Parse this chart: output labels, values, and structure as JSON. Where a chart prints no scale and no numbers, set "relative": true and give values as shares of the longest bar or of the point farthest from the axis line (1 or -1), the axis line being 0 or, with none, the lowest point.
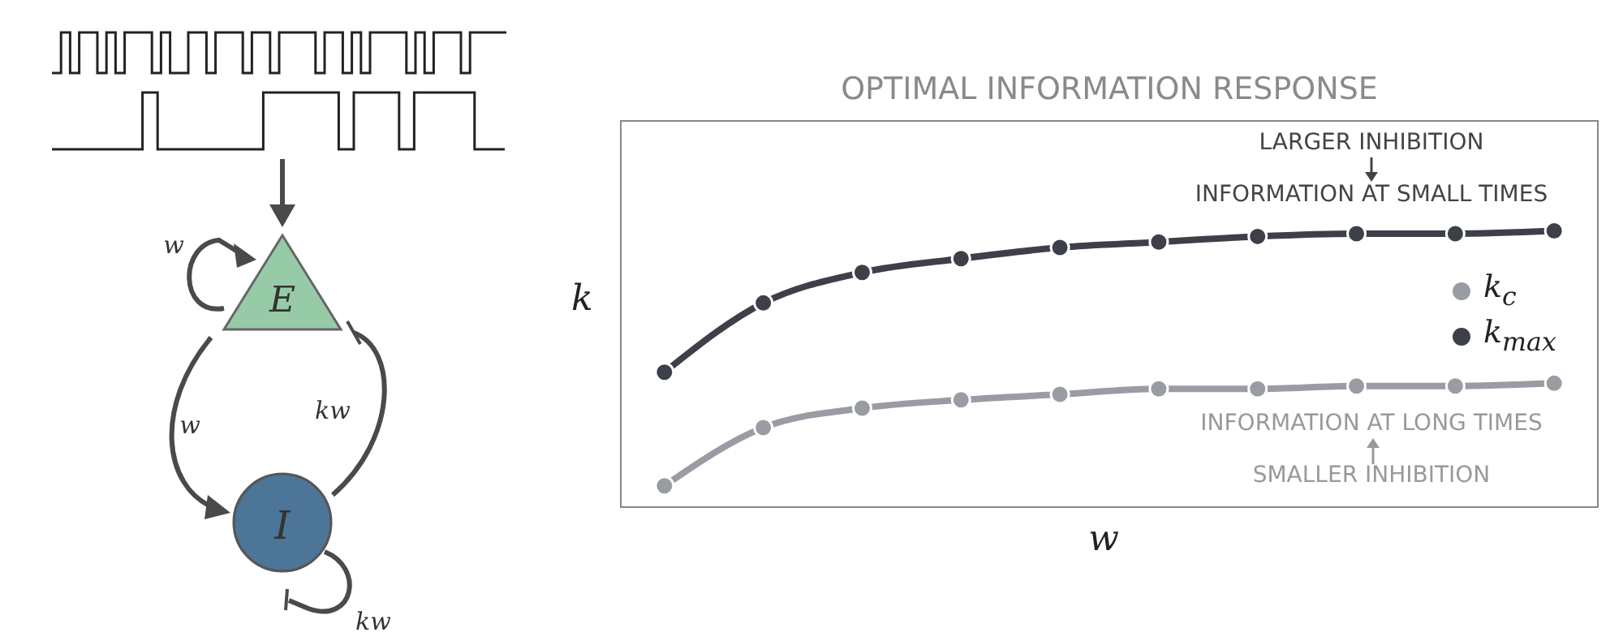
{
  "chart_data": {
    "type": "line",
    "title": "OPTIMAL INFORMATION RESPONSE",
    "xlabel": "w",
    "ylabel": "k",
    "relative": true,
    "categories": [
      null,
      null,
      null,
      null,
      null,
      null,
      null,
      null,
      null,
      null
    ],
    "series": [
      {
        "name": "k$_{c}$",
        "color": "#9a9ca3",
        "values": [
          0.08,
          0.29,
          0.36,
          0.39,
          0.41,
          0.43,
          0.43,
          0.44,
          0.44,
          0.45
        ]
      },
      {
        "name": "k$_{max}$",
        "color": "#3d4048",
        "values": [
          0.49,
          0.74,
          0.85,
          0.9,
          0.94,
          0.96,
          0.98,
          0.99,
          0.99,
          1
        ]
      }
    ],
    "legend": "right",
    "marker": "circle",
    "line_style": "solid",
    "tick_labels": false,
    "annotations": [
      "LARGER INHIBITION",
      "INFORMATION AT SMALL TIMES",
      "INFORMATION AT LONG TIMES",
      "SMALLER INHIBITION",
      "w",
      "E",
      "w",
      "kw",
      "I",
      "kw"
    ]
  }
}
